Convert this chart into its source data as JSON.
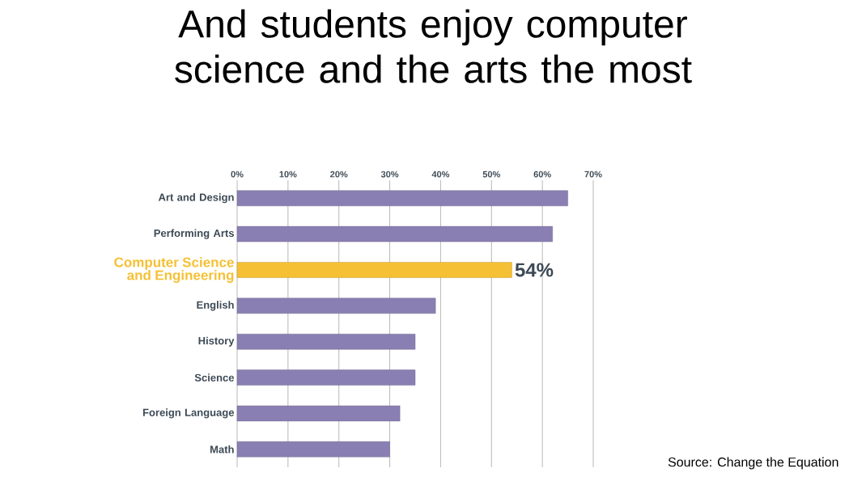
{
  "chart_data": {
    "type": "bar",
    "orientation": "horizontal",
    "title": "And students enjoy computer science and the arts the most",
    "categories": [
      "Art and Design",
      "Performing Arts",
      "Computer Science and Engineering",
      "English",
      "History",
      "Science",
      "Foreign Language",
      "Math"
    ],
    "values": [
      65,
      62,
      54,
      39,
      35,
      35,
      32,
      30
    ],
    "colors": [
      "#8a7fb3",
      "#8a7fb3",
      "#f6c034",
      "#8a7fb3",
      "#8a7fb3",
      "#8a7fb3",
      "#8a7fb3",
      "#8a7fb3"
    ],
    "value_labels": [
      null,
      null,
      "54%",
      null,
      null,
      null,
      null,
      null
    ],
    "xlim": [
      0,
      70
    ],
    "xticks": [
      {
        "value": 0,
        "label": "0%"
      },
      {
        "value": 10,
        "label": "10%"
      },
      {
        "value": 20,
        "label": "20%"
      },
      {
        "value": 30,
        "label": "30%"
      },
      {
        "value": 40,
        "label": "40%"
      },
      {
        "value": 50,
        "label": "50%"
      },
      {
        "value": 60,
        "label": "60%"
      },
      {
        "value": 70,
        "label": "70%"
      }
    ],
    "grid": "x",
    "annotations": [
      "Source: Change the Equation"
    ]
  }
}
